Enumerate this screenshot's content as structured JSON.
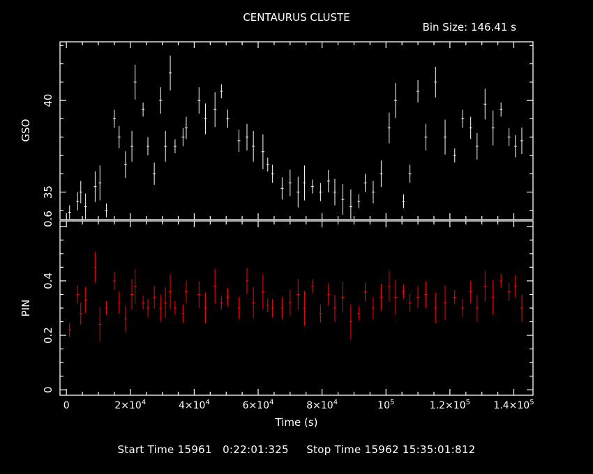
{
  "chart_data": [
    {
      "type": "line",
      "panel": "upper",
      "title": "CENTAURUS CLUSTE",
      "subtitle": "Bin Size:  146.41  s",
      "ylabel": "GSO",
      "ylim": [
        33.5,
        43.2
      ],
      "yticks": [
        35,
        40
      ],
      "ytick_labels": [
        "35",
        "40"
      ],
      "bottom_label": "0.6",
      "color": "#ffffff",
      "grid": false,
      "x": [
        1000,
        3500,
        4500,
        6000,
        9000,
        10500,
        12500,
        15000,
        16500,
        18500,
        20500,
        21500,
        24000,
        25500,
        27500,
        29500,
        31000,
        32500,
        34000,
        36500,
        37500,
        41500,
        43500,
        46500,
        48500,
        50500,
        54000,
        56500,
        58500,
        61500,
        63000,
        64500,
        67500,
        70000,
        72500,
        74500,
        77000,
        79500,
        82000,
        84000,
        86500,
        89000,
        91500,
        93500,
        96000,
        98500,
        101000,
        103000,
        105500,
        107500,
        110000,
        112500,
        115500,
        118500,
        121500,
        124000,
        126500,
        128500,
        131000,
        133500,
        136000,
        138500,
        140500,
        142500
      ],
      "y": [
        33.9,
        34.5,
        35.0,
        34.2,
        35.3,
        35.5,
        34.0,
        39.0,
        38.0,
        36.5,
        37.5,
        41.0,
        39.5,
        37.5,
        36.0,
        40.0,
        37.5,
        41.5,
        37.5,
        38.0,
        38.5,
        40.0,
        39.0,
        39.5,
        40.5,
        39.0,
        37.8,
        38.0,
        37.5,
        37.2,
        36.5,
        36.0,
        35.2,
        35.5,
        35.0,
        35.5,
        35.3,
        35.0,
        35.6,
        35.0,
        34.6,
        34.2,
        34.5,
        35.5,
        35.0,
        36.0,
        38.5,
        40.0,
        34.5,
        36.0,
        40.5,
        38.0,
        41.0,
        38.0,
        37.0,
        39.0,
        38.5,
        37.5,
        39.8,
        38.5,
        39.5,
        38.0,
        37.5,
        37.8
      ]
    },
    {
      "type": "line",
      "panel": "lower",
      "ylabel": "PIN",
      "xlabel": "Time (s)",
      "ylim": [
        -0.02,
        0.62
      ],
      "yticks": [
        0,
        0.2,
        0.4
      ],
      "ytick_labels": [
        "0",
        "0.2",
        "0.4"
      ],
      "xlim": [
        -2000,
        146000
      ],
      "xticks": [
        0,
        20000,
        40000,
        60000,
        80000,
        100000,
        120000,
        140000
      ],
      "xtick_labels": [
        {
          "base": "0",
          "exp": ""
        },
        {
          "base": "2×10",
          "exp": "4"
        },
        {
          "base": "4×10",
          "exp": "4"
        },
        {
          "base": "6×10",
          "exp": "4"
        },
        {
          "base": "8×10",
          "exp": "4"
        },
        {
          "base": "10",
          "exp": "5"
        },
        {
          "base": "1.2×10",
          "exp": "5"
        },
        {
          "base": "1.4×10",
          "exp": "5"
        }
      ],
      "color": "#ff0000",
      "grid": false,
      "x": [
        1000,
        3500,
        4500,
        6000,
        9000,
        10500,
        12500,
        15000,
        16500,
        18500,
        20500,
        21500,
        24000,
        25500,
        27500,
        29500,
        31000,
        32500,
        34000,
        36500,
        37500,
        41500,
        43500,
        46500,
        48500,
        50500,
        54000,
        56500,
        58500,
        61500,
        63000,
        64500,
        67500,
        70000,
        72500,
        74500,
        77000,
        79500,
        82000,
        84000,
        86500,
        89000,
        91500,
        93500,
        96000,
        98500,
        101000,
        103000,
        105500,
        107500,
        110000,
        112500,
        115500,
        118500,
        121500,
        124000,
        126500,
        128500,
        131000,
        133500,
        136000,
        138500,
        140500,
        142500
      ],
      "y": [
        0.22,
        0.35,
        0.28,
        0.33,
        0.45,
        0.24,
        0.3,
        0.4,
        0.32,
        0.26,
        0.35,
        0.38,
        0.32,
        0.3,
        0.34,
        0.3,
        0.32,
        0.36,
        0.3,
        0.28,
        0.36,
        0.35,
        0.3,
        0.38,
        0.32,
        0.34,
        0.3,
        0.4,
        0.32,
        0.36,
        0.31,
        0.3,
        0.3,
        0.32,
        0.35,
        0.3,
        0.38,
        0.28,
        0.35,
        0.3,
        0.34,
        0.25,
        0.28,
        0.36,
        0.3,
        0.34,
        0.38,
        0.34,
        0.36,
        0.32,
        0.34,
        0.35,
        0.3,
        0.32,
        0.34,
        0.3,
        0.36,
        0.3,
        0.38,
        0.34,
        0.4,
        0.36,
        0.38,
        0.3
      ]
    }
  ],
  "footer": {
    "start_label": "Start Time",
    "start_value": "15961   0:22:01:325",
    "stop_label": "Stop Time",
    "stop_value": "15962 15:35:01:812"
  }
}
